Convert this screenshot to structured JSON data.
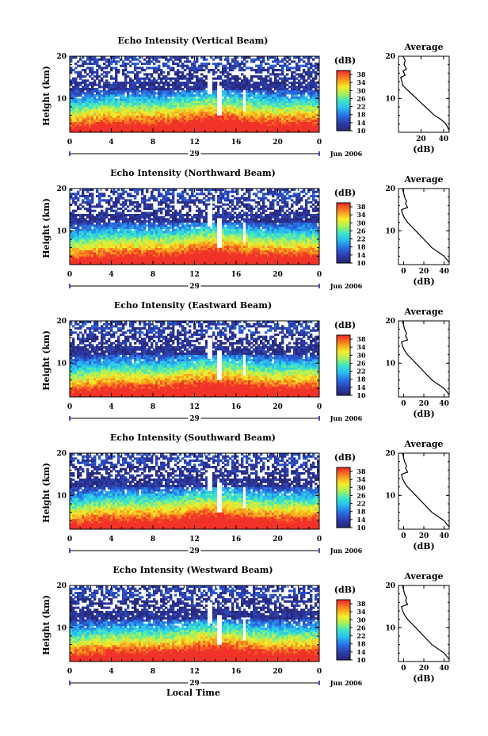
{
  "chart_data": [
    {
      "type": "heatmap",
      "title": "Echo Intensity (Vertical Beam)",
      "ylabel": "Height (km)",
      "x_ticks": [
        "0",
        "4",
        "8",
        "12",
        "16",
        "20",
        "0"
      ],
      "date_label": "29",
      "month_label": "Jun 2006",
      "ylim": [
        2,
        20
      ],
      "y_ticks": [
        "20",
        "10"
      ],
      "colorbar": {
        "unit": "(dB)",
        "ticks": [
          "38",
          "34",
          "30",
          "26",
          "22",
          "18",
          "14",
          "10"
        ],
        "range": [
          10,
          40
        ]
      },
      "profile": {
        "title": "Average",
        "xlabel": "(dB)",
        "x_ticks": [
          "20",
          "40"
        ],
        "y_ticks": [
          "20",
          "10"
        ],
        "xlim": [
          0,
          45
        ],
        "ylim": [
          2,
          20
        ],
        "height_km": [
          2.5,
          4,
          5,
          6,
          7,
          8,
          9,
          10,
          11,
          12,
          13,
          14,
          15,
          15.5,
          16.5,
          17,
          18,
          19,
          20
        ],
        "db": [
          45,
          42,
          38,
          32,
          28,
          24,
          20,
          16,
          12,
          8,
          4,
          3,
          2,
          6,
          4,
          7,
          5,
          6,
          4
        ]
      }
    },
    {
      "type": "heatmap",
      "title": "Echo Intensity (Northward Beam)",
      "ylabel": "Height (km)",
      "x_ticks": [
        "0",
        "4",
        "8",
        "12",
        "16",
        "20",
        "0"
      ],
      "date_label": "29",
      "month_label": "Jun 2006",
      "ylim": [
        2,
        20
      ],
      "y_ticks": [
        "20",
        "10"
      ],
      "colorbar": {
        "unit": "(dB)",
        "ticks": [
          "38",
          "34",
          "30",
          "26",
          "22",
          "18",
          "14",
          "10"
        ],
        "range": [
          10,
          40
        ]
      },
      "profile": {
        "title": "Average",
        "xlabel": "(dB)",
        "x_ticks": [
          "0",
          "20",
          "40"
        ],
        "y_ticks": [
          "20",
          "10"
        ],
        "xlim": [
          -5,
          45
        ],
        "ylim": [
          2,
          20
        ],
        "height_km": [
          2.5,
          4,
          5,
          6,
          7,
          8,
          9,
          10,
          11,
          12,
          13,
          14,
          15,
          15.5,
          16.5,
          17,
          18,
          19,
          20
        ],
        "db": [
          45,
          40,
          34,
          28,
          24,
          20,
          16,
          12,
          8,
          4,
          1,
          -1,
          -2,
          4,
          2,
          3,
          1,
          0,
          -1
        ]
      }
    },
    {
      "type": "heatmap",
      "title": "Echo Intensity (Eastward Beam)",
      "ylabel": "Height (km)",
      "x_ticks": [
        "0",
        "4",
        "8",
        "12",
        "16",
        "20",
        "0"
      ],
      "date_label": "29",
      "month_label": "Jun 2006",
      "ylim": [
        2,
        20
      ],
      "y_ticks": [
        "20",
        "10"
      ],
      "colorbar": {
        "unit": "(dB)",
        "ticks": [
          "38",
          "34",
          "30",
          "26",
          "22",
          "18",
          "14",
          "10"
        ],
        "range": [
          10,
          40
        ]
      },
      "profile": {
        "title": "Average",
        "xlabel": "(dB)",
        "x_ticks": [
          "0",
          "20",
          "40"
        ],
        "y_ticks": [
          "20",
          "10"
        ],
        "xlim": [
          -5,
          45
        ],
        "ylim": [
          2,
          20
        ],
        "height_km": [
          2.5,
          4,
          5,
          6,
          7,
          8,
          9,
          10,
          11,
          12,
          13,
          14,
          15,
          15.5,
          16.5,
          17,
          18,
          19,
          20
        ],
        "db": [
          45,
          40,
          34,
          28,
          24,
          20,
          16,
          12,
          8,
          4,
          1,
          -1,
          -2,
          4,
          2,
          3,
          1,
          0,
          -1
        ]
      }
    },
    {
      "type": "heatmap",
      "title": "Echo Intensity (Southward Beam)",
      "ylabel": "Height (km)",
      "x_ticks": [
        "0",
        "4",
        "8",
        "12",
        "16",
        "20",
        "0"
      ],
      "date_label": "29",
      "month_label": "Jun 2006",
      "ylim": [
        2,
        20
      ],
      "y_ticks": [
        "20",
        "10"
      ],
      "colorbar": {
        "unit": "(dB)",
        "ticks": [
          "38",
          "34",
          "30",
          "26",
          "22",
          "18",
          "14",
          "10"
        ],
        "range": [
          10,
          40
        ]
      },
      "profile": {
        "title": "Average",
        "xlabel": "(dB)",
        "x_ticks": [
          "0",
          "20",
          "40"
        ],
        "y_ticks": [
          "20",
          "10"
        ],
        "xlim": [
          -5,
          45
        ],
        "ylim": [
          2,
          20
        ],
        "height_km": [
          2.5,
          4,
          5,
          6,
          7,
          8,
          9,
          10,
          11,
          12,
          13,
          14,
          15,
          15.5,
          16.5,
          17,
          18,
          19,
          20
        ],
        "db": [
          45,
          40,
          34,
          28,
          24,
          20,
          16,
          12,
          8,
          4,
          1,
          -1,
          -2,
          4,
          2,
          3,
          1,
          0,
          -1
        ]
      }
    },
    {
      "type": "heatmap",
      "title": "Echo Intensity (Westward Beam)",
      "ylabel": "Height (km)",
      "x_ticks": [
        "0",
        "4",
        "8",
        "12",
        "16",
        "20",
        "0"
      ],
      "date_label": "29",
      "month_label": "Jun 2006",
      "ylim": [
        2,
        20
      ],
      "y_ticks": [
        "20",
        "10"
      ],
      "colorbar": {
        "unit": "(dB)",
        "ticks": [
          "38",
          "34",
          "30",
          "26",
          "22",
          "18",
          "14",
          "10"
        ],
        "range": [
          10,
          40
        ]
      },
      "profile": {
        "title": "Average",
        "xlabel": "(dB)",
        "x_ticks": [
          "0",
          "20",
          "40"
        ],
        "y_ticks": [
          "20",
          "10"
        ],
        "xlim": [
          -5,
          45
        ],
        "ylim": [
          2,
          20
        ],
        "height_km": [
          2.5,
          4,
          5,
          6,
          7,
          8,
          9,
          10,
          11,
          12,
          13,
          14,
          15,
          15.5,
          16.5,
          17,
          18,
          19,
          20
        ],
        "db": [
          45,
          40,
          34,
          28,
          24,
          20,
          16,
          12,
          8,
          4,
          1,
          -1,
          -2,
          4,
          2,
          3,
          1,
          0,
          -1
        ]
      }
    }
  ],
  "xlabel": "Local Time"
}
